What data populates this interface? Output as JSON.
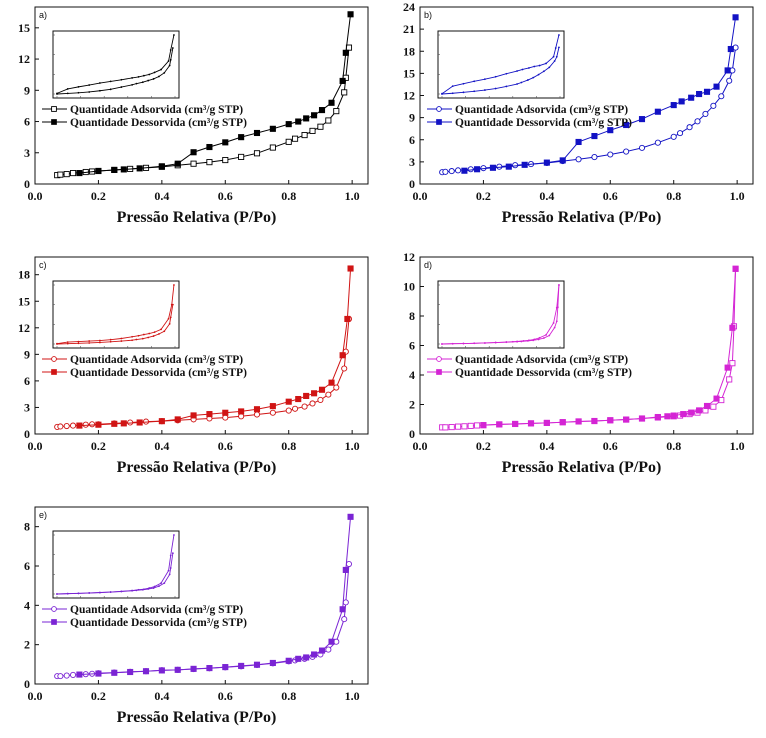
{
  "chart_data": [
    {
      "type": "line",
      "panel_label": "a)",
      "xlabel": "Pressão Relativa (P/Po)",
      "ylabel": "",
      "xlim": [
        0,
        1.05
      ],
      "ylim": [
        0,
        17
      ],
      "xticks": [
        0.0,
        0.2,
        0.4,
        0.6,
        0.8,
        1.0
      ],
      "yticks": [
        0,
        3,
        6,
        9,
        12,
        15
      ],
      "color": "#000000",
      "legend_position": "middle-left",
      "inset": true,
      "series": [
        {
          "name": "Quantidade Adsorvida (cm³/g STP)",
          "marker": "open-square",
          "x": [
            0.07,
            0.08,
            0.1,
            0.12,
            0.16,
            0.18,
            0.2,
            0.25,
            0.3,
            0.35,
            0.4,
            0.45,
            0.5,
            0.55,
            0.6,
            0.65,
            0.7,
            0.75,
            0.8,
            0.82,
            0.85,
            0.875,
            0.9,
            0.925,
            0.95,
            0.975,
            0.98,
            0.99
          ],
          "y": [
            0.85,
            0.9,
            0.95,
            1.05,
            1.15,
            1.2,
            1.25,
            1.35,
            1.45,
            1.55,
            1.65,
            1.8,
            1.95,
            2.1,
            2.3,
            2.6,
            2.95,
            3.5,
            4.05,
            4.35,
            4.7,
            5.1,
            5.5,
            6.1,
            7.0,
            8.8,
            10.2,
            13.1
          ]
        },
        {
          "name": "Quantidade Dessorvida (cm³/g STP)",
          "marker": "filled-square",
          "x": [
            0.995,
            0.98,
            0.97,
            0.935,
            0.905,
            0.88,
            0.855,
            0.83,
            0.8,
            0.75,
            0.7,
            0.65,
            0.6,
            0.55,
            0.5,
            0.45,
            0.4,
            0.33,
            0.28,
            0.25,
            0.2,
            0.14
          ],
          "y": [
            16.3,
            12.6,
            9.9,
            7.8,
            7.1,
            6.6,
            6.3,
            6.0,
            5.75,
            5.3,
            4.9,
            4.5,
            4.0,
            3.55,
            3.05,
            1.95,
            1.7,
            1.5,
            1.4,
            1.35,
            1.25,
            1.05
          ]
        }
      ]
    },
    {
      "type": "line",
      "panel_label": "b)",
      "xlabel": "Pressão Relativa (P/Po)",
      "ylabel": "",
      "xlim": [
        0,
        1.05
      ],
      "ylim": [
        0,
        24
      ],
      "xticks": [
        0.0,
        0.2,
        0.4,
        0.6,
        0.8,
        1.0
      ],
      "yticks": [
        0,
        3,
        6,
        9,
        12,
        15,
        18,
        21,
        24
      ],
      "color": "#1212c4",
      "legend_position": "middle-left",
      "inset": true,
      "series": [
        {
          "name": "Quantidade Adsorvida (cm³/g STP)",
          "marker": "open-circle",
          "x": [
            0.07,
            0.08,
            0.1,
            0.12,
            0.16,
            0.2,
            0.25,
            0.3,
            0.35,
            0.4,
            0.45,
            0.5,
            0.55,
            0.6,
            0.65,
            0.7,
            0.75,
            0.8,
            0.82,
            0.85,
            0.875,
            0.9,
            0.925,
            0.95,
            0.975,
            0.985,
            0.995
          ],
          "y": [
            1.6,
            1.65,
            1.75,
            1.85,
            2.0,
            2.15,
            2.35,
            2.55,
            2.7,
            2.85,
            3.1,
            3.35,
            3.65,
            4.0,
            4.4,
            4.9,
            5.6,
            6.4,
            6.9,
            7.7,
            8.5,
            9.5,
            10.6,
            11.9,
            14.0,
            15.4,
            18.5
          ]
        },
        {
          "name": "Quantidade Dessorvida (cm³/g STP)",
          "marker": "filled-square",
          "x": [
            0.995,
            0.98,
            0.97,
            0.935,
            0.905,
            0.88,
            0.855,
            0.825,
            0.8,
            0.75,
            0.7,
            0.65,
            0.6,
            0.55,
            0.5,
            0.45,
            0.4,
            0.33,
            0.28,
            0.23,
            0.18,
            0.14
          ],
          "y": [
            22.6,
            18.3,
            15.4,
            13.2,
            12.5,
            12.2,
            11.7,
            11.2,
            10.7,
            9.8,
            8.8,
            8.0,
            7.3,
            6.5,
            5.7,
            3.2,
            2.9,
            2.6,
            2.35,
            2.2,
            2.0,
            1.8
          ]
        }
      ]
    },
    {
      "type": "line",
      "panel_label": "c)",
      "xlabel": "Pressão Relativa (P/Po)",
      "ylabel": "",
      "xlim": [
        0,
        1.05
      ],
      "ylim": [
        0,
        20
      ],
      "xticks": [
        0.0,
        0.2,
        0.4,
        0.6,
        0.8,
        1.0
      ],
      "yticks": [
        0,
        3,
        6,
        9,
        12,
        15,
        18
      ],
      "color": "#d01414",
      "legend_position": "middle-left",
      "inset": true,
      "series": [
        {
          "name": "Quantidade Adsorvida (cm³/g STP)",
          "marker": "open-circle",
          "x": [
            0.07,
            0.08,
            0.1,
            0.12,
            0.16,
            0.18,
            0.2,
            0.25,
            0.3,
            0.35,
            0.4,
            0.45,
            0.5,
            0.55,
            0.6,
            0.65,
            0.7,
            0.75,
            0.8,
            0.82,
            0.85,
            0.875,
            0.9,
            0.925,
            0.95,
            0.975,
            0.98,
            0.99
          ],
          "y": [
            0.8,
            0.85,
            0.9,
            0.95,
            1.05,
            1.1,
            1.1,
            1.2,
            1.3,
            1.4,
            1.45,
            1.55,
            1.65,
            1.75,
            1.85,
            2.0,
            2.2,
            2.4,
            2.65,
            2.85,
            3.1,
            3.45,
            3.85,
            4.45,
            5.25,
            7.4,
            9.3,
            13.0
          ]
        },
        {
          "name": "Quantidade Dessorvida (cm³/g STP)",
          "marker": "filled-square",
          "x": [
            0.995,
            0.985,
            0.97,
            0.935,
            0.905,
            0.88,
            0.855,
            0.83,
            0.8,
            0.75,
            0.7,
            0.65,
            0.6,
            0.55,
            0.5,
            0.45,
            0.4,
            0.33,
            0.28,
            0.25,
            0.2,
            0.14
          ],
          "y": [
            18.7,
            13.0,
            8.9,
            5.8,
            5.0,
            4.6,
            4.3,
            3.95,
            3.65,
            3.15,
            2.8,
            2.55,
            2.4,
            2.25,
            2.1,
            1.65,
            1.45,
            1.3,
            1.2,
            1.15,
            1.05,
            0.95
          ]
        }
      ]
    },
    {
      "type": "line",
      "panel_label": "d)",
      "xlabel": "Pressão Relativa (P/Po)",
      "ylabel": "",
      "xlim": [
        0,
        1.05
      ],
      "ylim": [
        0,
        12
      ],
      "xticks": [
        0.0,
        0.2,
        0.4,
        0.6,
        0.8,
        1.0
      ],
      "yticks": [
        0,
        2,
        4,
        6,
        8,
        10,
        12
      ],
      "color": "#d424d4",
      "legend_position": "middle-left",
      "inset": true,
      "series": [
        {
          "name": "Quantidade Adsorvida (cm³/g STP)",
          "marker": "open-square",
          "legend_marker": "open-circle",
          "x": [
            0.07,
            0.08,
            0.1,
            0.12,
            0.14,
            0.16,
            0.18,
            0.2,
            0.25,
            0.3,
            0.35,
            0.4,
            0.45,
            0.5,
            0.55,
            0.6,
            0.65,
            0.7,
            0.75,
            0.8,
            0.82,
            0.85,
            0.875,
            0.9,
            0.925,
            0.95,
            0.975,
            0.985,
            0.99,
            0.995
          ],
          "y": [
            0.45,
            0.45,
            0.47,
            0.5,
            0.52,
            0.55,
            0.58,
            0.6,
            0.65,
            0.68,
            0.72,
            0.75,
            0.8,
            0.85,
            0.88,
            0.93,
            0.98,
            1.05,
            1.12,
            1.2,
            1.25,
            1.35,
            1.45,
            1.6,
            1.85,
            2.3,
            3.7,
            4.8,
            7.3,
            11.2
          ]
        },
        {
          "name": "Quantidade Dessorvida (cm³/g STP)",
          "marker": "filled-square",
          "x": [
            0.995,
            0.985,
            0.97,
            0.935,
            0.905,
            0.88,
            0.855,
            0.83,
            0.8,
            0.78,
            0.75,
            0.7,
            0.65,
            0.6,
            0.55,
            0.5,
            0.45,
            0.4,
            0.35,
            0.3,
            0.25,
            0.2
          ],
          "y": [
            11.2,
            7.2,
            4.5,
            2.4,
            1.9,
            1.6,
            1.45,
            1.35,
            1.25,
            1.2,
            1.15,
            1.05,
            0.98,
            0.93,
            0.88,
            0.85,
            0.8,
            0.75,
            0.72,
            0.68,
            0.65,
            0.6
          ]
        }
      ]
    },
    {
      "type": "line",
      "panel_label": "e)",
      "xlabel": "Pressão Relativa (P/Po)",
      "ylabel": "",
      "xlim": [
        0,
        1.05
      ],
      "ylim": [
        0,
        9
      ],
      "xticks": [
        0.0,
        0.2,
        0.4,
        0.6,
        0.8,
        1.0
      ],
      "yticks": [
        0,
        2,
        4,
        6,
        8
      ],
      "color": "#7a24d4",
      "legend_position": "middle-left",
      "inset": true,
      "series": [
        {
          "name": "Quantidade Adsorvida (cm³/g STP)",
          "marker": "open-circle",
          "x": [
            0.07,
            0.08,
            0.1,
            0.12,
            0.16,
            0.18,
            0.2,
            0.25,
            0.3,
            0.35,
            0.4,
            0.45,
            0.5,
            0.55,
            0.6,
            0.65,
            0.7,
            0.75,
            0.8,
            0.82,
            0.85,
            0.875,
            0.9,
            0.925,
            0.95,
            0.975,
            0.98,
            0.99
          ],
          "y": [
            0.4,
            0.4,
            0.43,
            0.46,
            0.5,
            0.52,
            0.55,
            0.58,
            0.62,
            0.65,
            0.7,
            0.72,
            0.76,
            0.8,
            0.85,
            0.9,
            0.97,
            1.05,
            1.15,
            1.2,
            1.28,
            1.38,
            1.5,
            1.75,
            2.15,
            3.3,
            4.15,
            6.1
          ]
        },
        {
          "name": "Quantidade Dessorvida (cm³/g STP)",
          "marker": "filled-square",
          "x": [
            0.995,
            0.98,
            0.97,
            0.935,
            0.905,
            0.88,
            0.855,
            0.83,
            0.8,
            0.75,
            0.7,
            0.65,
            0.6,
            0.55,
            0.5,
            0.45,
            0.4,
            0.35,
            0.3,
            0.25,
            0.2,
            0.14
          ],
          "y": [
            8.5,
            5.8,
            3.8,
            2.15,
            1.7,
            1.5,
            1.35,
            1.28,
            1.18,
            1.07,
            0.98,
            0.92,
            0.86,
            0.81,
            0.77,
            0.72,
            0.69,
            0.65,
            0.61,
            0.57,
            0.53,
            0.48
          ]
        }
      ]
    }
  ]
}
